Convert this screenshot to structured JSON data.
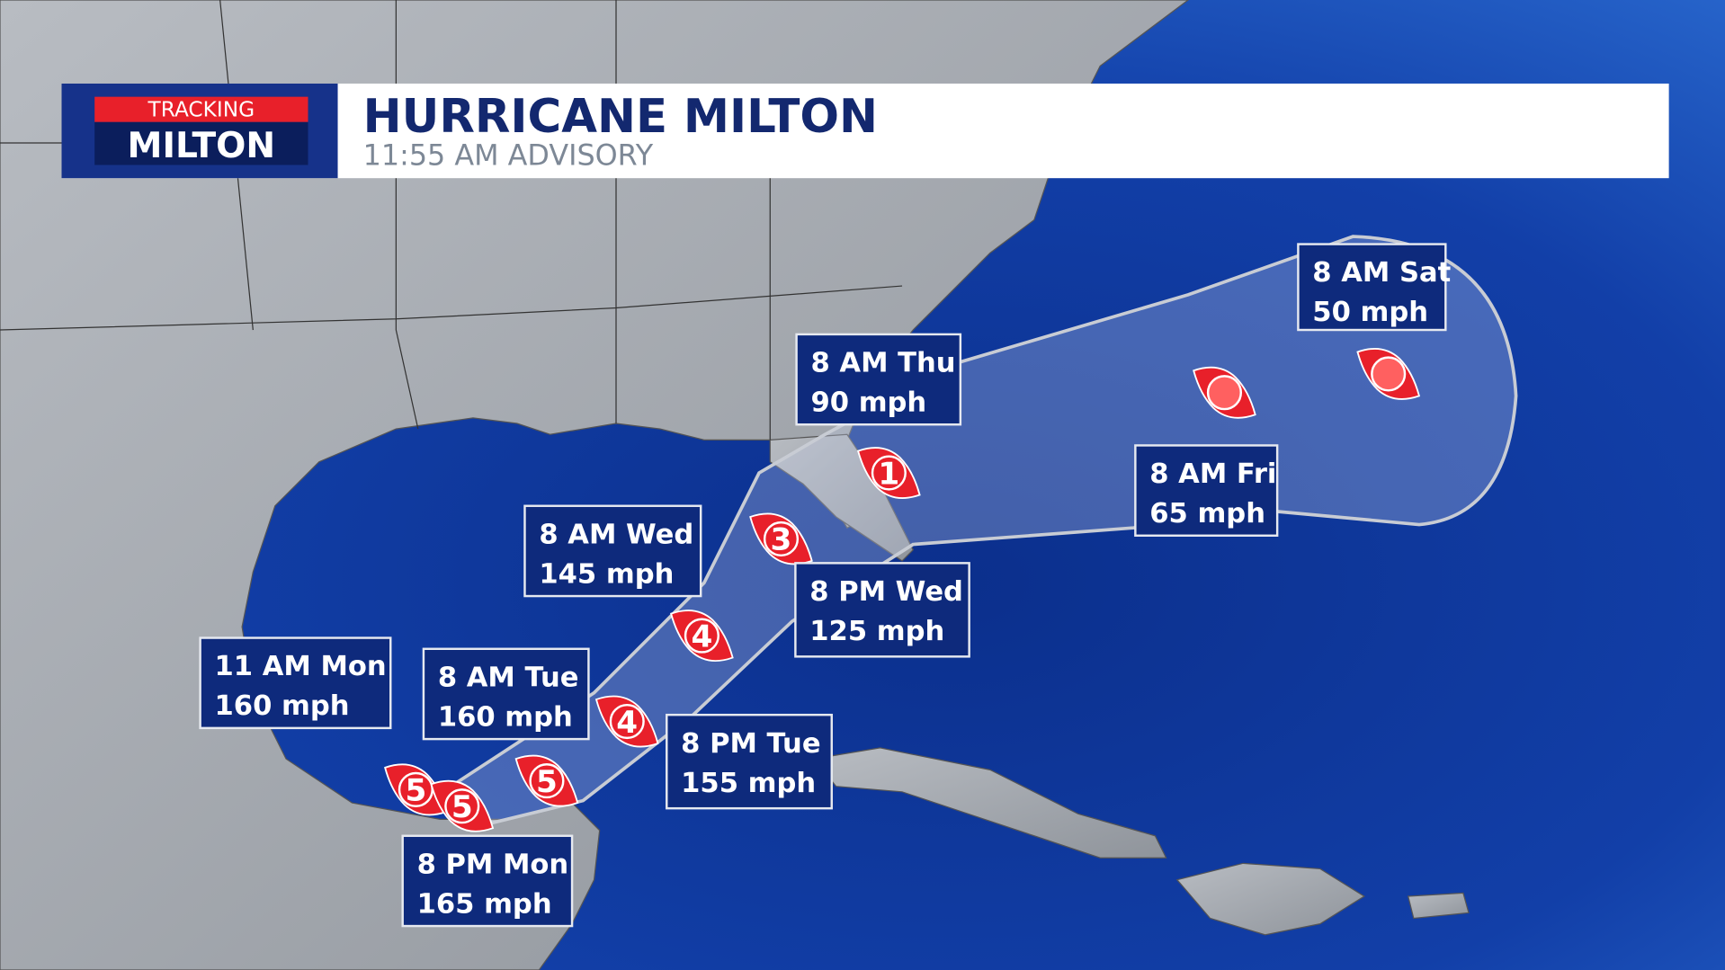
{
  "header": {
    "badge_top": "TRACKING",
    "badge_main": "MILTON",
    "title": "HURRICANE MILTON",
    "subtitle": "11:55 AM ADVISORY"
  },
  "forecast_points": [
    {
      "time": "11 AM Mon",
      "wind": "160 mph",
      "category": "5"
    },
    {
      "time": "8 PM Mon",
      "wind": "165 mph",
      "category": "5"
    },
    {
      "time": "8 AM Tue",
      "wind": "160 mph",
      "category": "5"
    },
    {
      "time": "8 PM Tue",
      "wind": "155 mph",
      "category": "4"
    },
    {
      "time": "8 AM Wed",
      "wind": "145 mph",
      "category": "4"
    },
    {
      "time": "8 PM Wed",
      "wind": "125 mph",
      "category": "3"
    },
    {
      "time": "8 AM Thu",
      "wind": "90 mph",
      "category": "1"
    },
    {
      "time": "8 AM Fri",
      "wind": "65 mph"
    },
    {
      "time": "8 AM Sat",
      "wind": "50 mph"
    }
  ]
}
